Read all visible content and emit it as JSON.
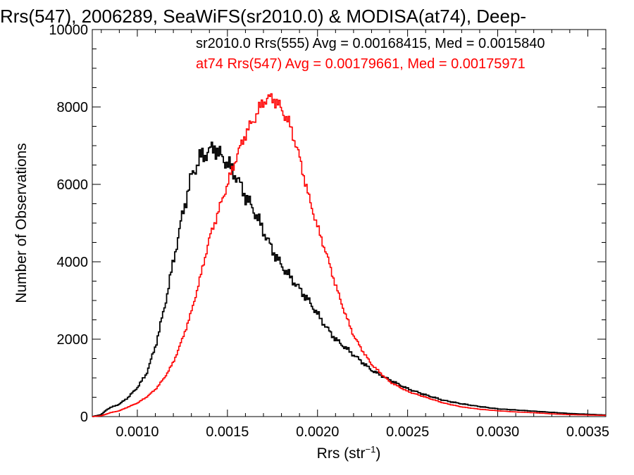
{
  "chart_data": {
    "type": "line",
    "title": "Rrs(547), 2006289, SeaWiFS(sr2010.0) & MODISA(at74), Deep-",
    "xlabel": "Rrs (str",
    "xlabel_sup": "−1",
    "xlabel_end": ")",
    "ylabel": "Number of Observations",
    "xlim": [
      0.00075,
      0.0036
    ],
    "ylim": [
      0,
      10000
    ],
    "xticks": [
      0.001,
      0.0015,
      0.002,
      0.0025,
      0.003,
      0.0035
    ],
    "xtick_labels": [
      "0.0010",
      "0.0015",
      "0.0020",
      "0.0025",
      "0.0030",
      "0.0035"
    ],
    "yticks": [
      0,
      2000,
      4000,
      6000,
      8000,
      10000
    ],
    "ytick_labels": [
      "0",
      "2000",
      "4000",
      "6000",
      "8000",
      "10000"
    ],
    "grid": false,
    "style": "step",
    "series": [
      {
        "name": "sr2010.0 Rrs(555) Avg = 0.00168415, Med = 0.0015840",
        "color": "#000000",
        "points": [
          [
            0.00075,
            0
          ],
          [
            0.0008,
            50
          ],
          [
            0.00083,
            180
          ],
          [
            0.00085,
            230
          ],
          [
            0.0009,
            320
          ],
          [
            0.00095,
            500
          ],
          [
            0.001,
            750
          ],
          [
            0.00105,
            1100
          ],
          [
            0.0011,
            1800
          ],
          [
            0.00115,
            2800
          ],
          [
            0.0012,
            4000
          ],
          [
            0.00125,
            5200
          ],
          [
            0.0013,
            6200
          ],
          [
            0.00135,
            6700
          ],
          [
            0.0014,
            6850
          ],
          [
            0.00143,
            6980
          ],
          [
            0.00145,
            6800
          ],
          [
            0.0015,
            6550
          ],
          [
            0.00155,
            6200
          ],
          [
            0.0016,
            5700
          ],
          [
            0.00165,
            5300
          ],
          [
            0.0017,
            4800
          ],
          [
            0.00175,
            4300
          ],
          [
            0.0018,
            3900
          ],
          [
            0.00185,
            3600
          ],
          [
            0.0019,
            3300
          ],
          [
            0.00195,
            3000
          ],
          [
            0.002,
            2650
          ],
          [
            0.00205,
            2300
          ],
          [
            0.0021,
            2000
          ],
          [
            0.00215,
            1800
          ],
          [
            0.0022,
            1600
          ],
          [
            0.00225,
            1400
          ],
          [
            0.0023,
            1200
          ],
          [
            0.0024,
            950
          ],
          [
            0.0025,
            720
          ],
          [
            0.0026,
            560
          ],
          [
            0.0027,
            420
          ],
          [
            0.0028,
            330
          ],
          [
            0.0029,
            260
          ],
          [
            0.003,
            200
          ],
          [
            0.0031,
            170
          ],
          [
            0.0032,
            140
          ],
          [
            0.0033,
            110
          ],
          [
            0.0034,
            80
          ],
          [
            0.0035,
            60
          ],
          [
            0.0036,
            40
          ]
        ]
      },
      {
        "name": "at74 Rrs(547) Avg = 0.00179661, Med = 0.00175971",
        "color": "#ff0000",
        "points": [
          [
            0.00075,
            0
          ],
          [
            0.0008,
            20
          ],
          [
            0.00085,
            100
          ],
          [
            0.0009,
            150
          ],
          [
            0.00095,
            250
          ],
          [
            0.001,
            350
          ],
          [
            0.00105,
            500
          ],
          [
            0.0011,
            700
          ],
          [
            0.00115,
            1000
          ],
          [
            0.0012,
            1400
          ],
          [
            0.00125,
            2000
          ],
          [
            0.0013,
            2700
          ],
          [
            0.00135,
            3600
          ],
          [
            0.0014,
            4600
          ],
          [
            0.00145,
            5300
          ],
          [
            0.0015,
            6000
          ],
          [
            0.00155,
            6700
          ],
          [
            0.0016,
            7300
          ],
          [
            0.00165,
            7700
          ],
          [
            0.0017,
            8150
          ],
          [
            0.00175,
            8250
          ],
          [
            0.0018,
            7950
          ],
          [
            0.00185,
            7500
          ],
          [
            0.0019,
            6700
          ],
          [
            0.00195,
            5700
          ],
          [
            0.002,
            4900
          ],
          [
            0.00205,
            4200
          ],
          [
            0.0021,
            3400
          ],
          [
            0.00215,
            2700
          ],
          [
            0.0022,
            2100
          ],
          [
            0.00225,
            1700
          ],
          [
            0.0023,
            1350
          ],
          [
            0.0024,
            900
          ],
          [
            0.0025,
            650
          ],
          [
            0.0026,
            500
          ],
          [
            0.0027,
            350
          ],
          [
            0.0028,
            250
          ],
          [
            0.0029,
            190
          ],
          [
            0.003,
            150
          ],
          [
            0.0031,
            120
          ],
          [
            0.0032,
            100
          ],
          [
            0.0033,
            70
          ],
          [
            0.0034,
            50
          ],
          [
            0.0035,
            40
          ],
          [
            0.0036,
            30
          ]
        ]
      }
    ]
  }
}
